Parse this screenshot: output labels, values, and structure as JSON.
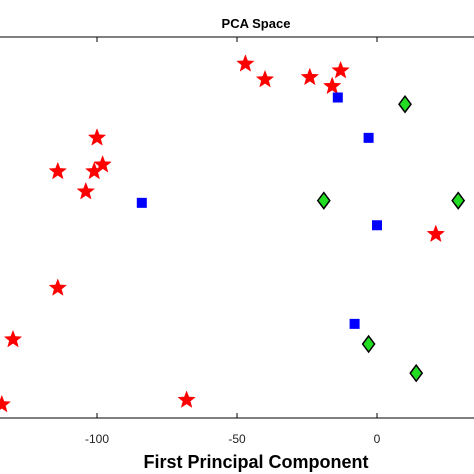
{
  "chart_data": {
    "type": "scatter",
    "title": "PCA Space",
    "xlabel": "First Principal Component",
    "ylabel": "",
    "xlim": [
      -135,
      35
    ],
    "ylim": [
      -80,
      90
    ],
    "x_ticks": [
      -100,
      -50,
      0
    ],
    "x_tick_labels": [
      "-100",
      "-50",
      "0"
    ],
    "grid": false,
    "legend": "none",
    "series": [
      {
        "marker": "star",
        "color": "#ff0000",
        "points": [
          [
            -47,
            78
          ],
          [
            -40,
            71
          ],
          [
            -24,
            72
          ],
          [
            -16,
            68
          ],
          [
            -13,
            75
          ],
          [
            -100,
            45
          ],
          [
            -114,
            30
          ],
          [
            -98,
            33
          ],
          [
            -101,
            30
          ],
          [
            -104,
            21
          ],
          [
            21,
            2
          ],
          [
            -114,
            -22
          ],
          [
            -130,
            -45
          ],
          [
            -134,
            -74
          ],
          [
            -68,
            -72
          ]
        ]
      },
      {
        "marker": "square",
        "color": "#0000ff",
        "points": [
          [
            -84,
            16
          ],
          [
            -14,
            63
          ],
          [
            -3,
            45
          ],
          [
            0,
            6
          ],
          [
            -8,
            -38
          ]
        ]
      },
      {
        "marker": "diamond",
        "color": "#22dd22",
        "points": [
          [
            10,
            60
          ],
          [
            -19,
            17
          ],
          [
            29,
            17
          ],
          [
            -3,
            -47
          ],
          [
            14,
            -60
          ]
        ]
      }
    ]
  }
}
